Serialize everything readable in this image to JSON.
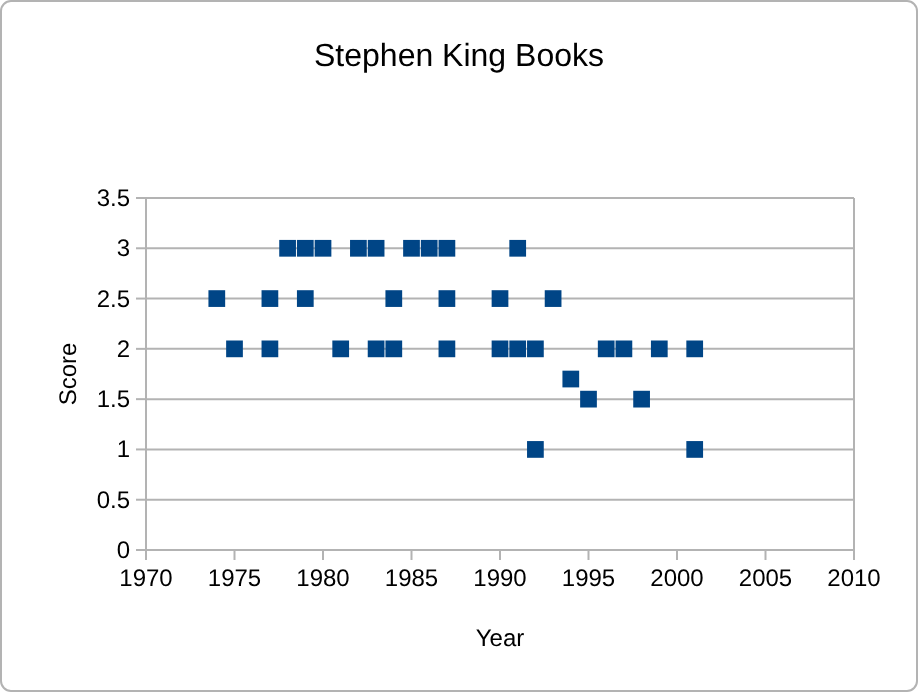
{
  "chart_data": {
    "type": "scatter",
    "title": "Stephen King Books",
    "xlabel": "Year",
    "ylabel": "Score",
    "x": [
      1974,
      1975,
      1977,
      1977,
      1978,
      1979,
      1980,
      1979,
      1981,
      1982,
      1983,
      1983,
      1984,
      1984,
      1985,
      1986,
      1987,
      1987,
      1987,
      1990,
      1990,
      1991,
      1991,
      1992,
      1992,
      1993,
      1994,
      1995,
      1996,
      1997,
      1998,
      1999,
      2001,
      2001
    ],
    "values": [
      2.5,
      2,
      2.5,
      2,
      3,
      3,
      3,
      2.5,
      2,
      3,
      3,
      2,
      2.5,
      2,
      3,
      3,
      3,
      2.5,
      2,
      2.5,
      2,
      3,
      2,
      2,
      1,
      2.5,
      1.7,
      1.5,
      2,
      2,
      1.5,
      2,
      2,
      1
    ],
    "color": "#004586",
    "marker": "square",
    "grid": "y",
    "xlim": [
      1970,
      2010
    ],
    "xticks": [
      1970,
      1975,
      1980,
      1985,
      1990,
      1995,
      2000,
      2005,
      2010
    ],
    "ylim": [
      0,
      3.5
    ],
    "yticks": [
      0,
      0.5,
      1,
      1.5,
      2,
      2.5,
      3,
      3.5
    ]
  }
}
